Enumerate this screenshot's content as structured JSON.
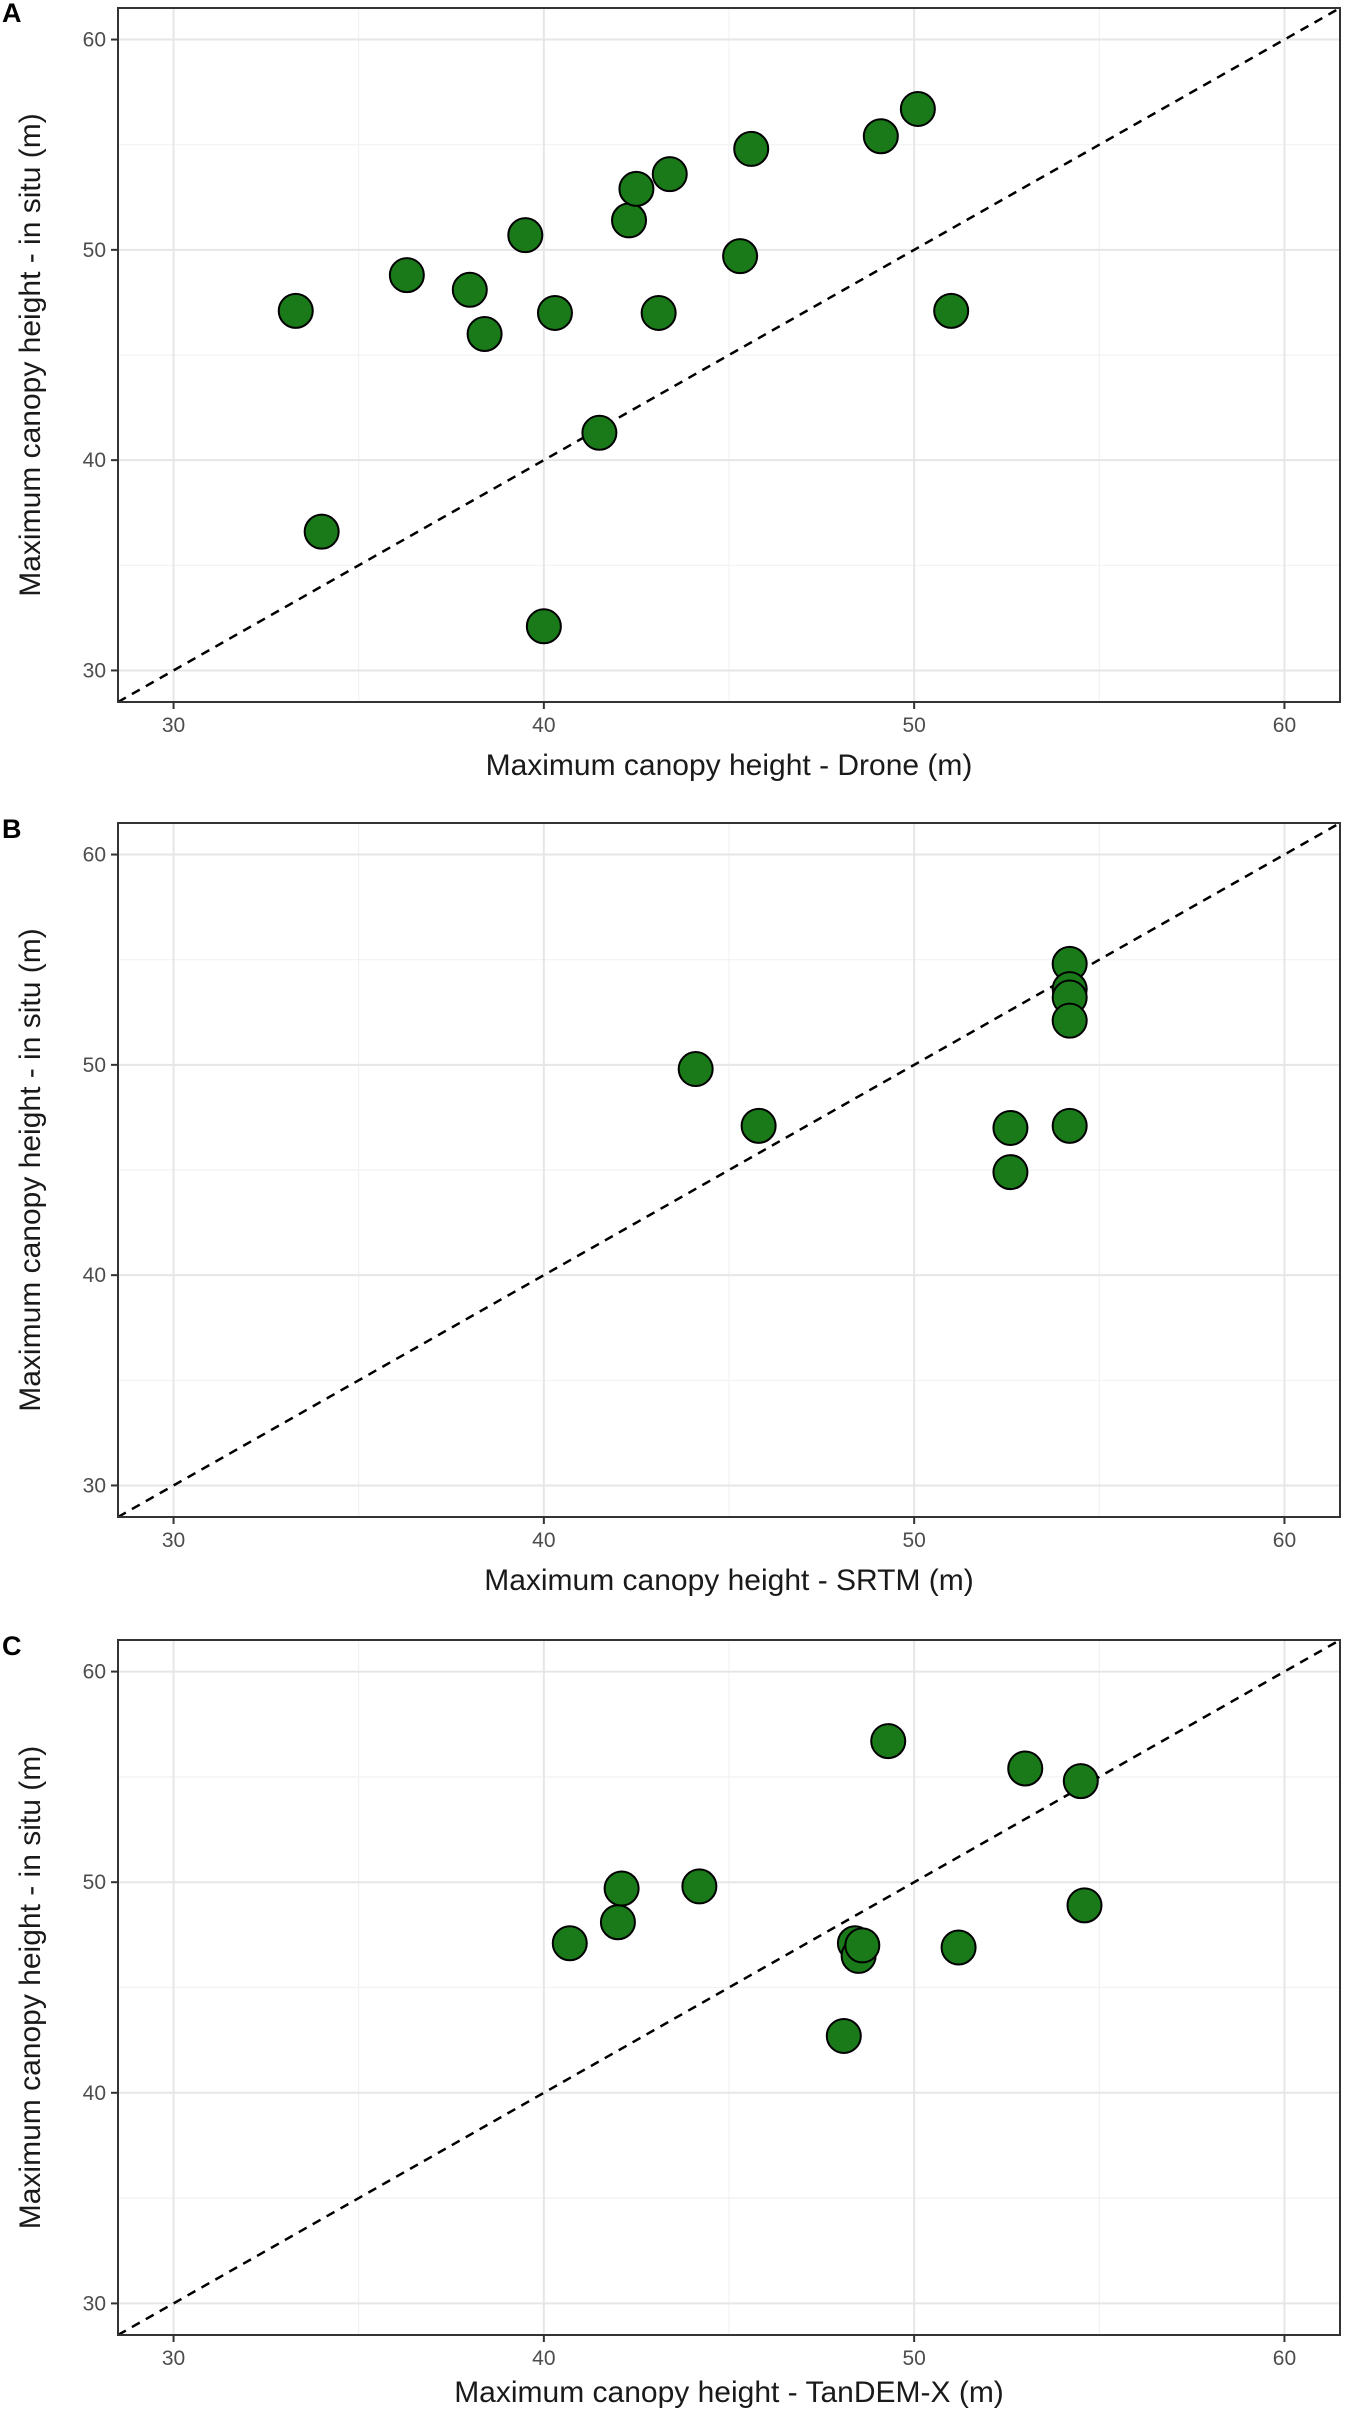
{
  "figure": {
    "description_colors": {
      "point_fill": "#1a7a1a",
      "point_stroke": "#000000",
      "grid": "#e6e6e6",
      "panel_border": "#333333"
    }
  },
  "chart_data": [
    {
      "type": "scatter",
      "panel_label": "A",
      "title": "",
      "xlabel": "Maximum canopy height - Drone (m)",
      "ylabel": "Maximum canopy height - in situ (m)",
      "xlim": [
        28.5,
        61.5
      ],
      "ylim": [
        28.5,
        61.5
      ],
      "xticks": [
        30,
        40,
        50,
        60
      ],
      "yticks": [
        30,
        40,
        50,
        60
      ],
      "reference_line": "1:1 dashed",
      "grid": true,
      "points": [
        [
          33.3,
          47.1
        ],
        [
          34.0,
          36.6
        ],
        [
          36.3,
          48.8
        ],
        [
          38.0,
          48.1
        ],
        [
          38.4,
          46.0
        ],
        [
          39.5,
          50.7
        ],
        [
          40.0,
          32.1
        ],
        [
          40.3,
          47.0
        ],
        [
          41.5,
          41.3
        ],
        [
          42.3,
          51.4
        ],
        [
          42.5,
          52.9
        ],
        [
          43.1,
          47.0
        ],
        [
          43.4,
          53.6
        ],
        [
          45.3,
          49.7
        ],
        [
          45.6,
          54.8
        ],
        [
          49.1,
          55.4
        ],
        [
          50.1,
          56.7
        ],
        [
          51.0,
          47.1
        ]
      ]
    },
    {
      "type": "scatter",
      "panel_label": "B",
      "title": "",
      "xlabel": "Maximum canopy height - SRTM (m)",
      "ylabel": "Maximum canopy height - in situ (m)",
      "xlim": [
        28.5,
        61.5
      ],
      "ylim": [
        28.5,
        61.5
      ],
      "xticks": [
        30,
        40,
        50,
        60
      ],
      "yticks": [
        30,
        40,
        50,
        60
      ],
      "reference_line": "1:1 dashed",
      "grid": true,
      "points": [
        [
          44.1,
          49.8
        ],
        [
          45.8,
          47.1
        ],
        [
          52.6,
          47.0
        ],
        [
          52.6,
          44.9
        ],
        [
          54.2,
          54.8
        ],
        [
          54.2,
          53.6
        ],
        [
          54.2,
          53.2
        ],
        [
          54.2,
          52.1
        ],
        [
          54.2,
          47.1
        ]
      ]
    },
    {
      "type": "scatter",
      "panel_label": "C",
      "title": "",
      "xlabel": "Maximum canopy height - TanDEM-X (m)",
      "ylabel": "Maximum canopy height - in situ (m)",
      "xlim": [
        28.5,
        61.5
      ],
      "ylim": [
        28.5,
        61.5
      ],
      "xticks": [
        30,
        40,
        50,
        60
      ],
      "yticks": [
        30,
        40,
        50,
        60
      ],
      "reference_line": "1:1 dashed",
      "grid": true,
      "points": [
        [
          40.7,
          47.1
        ],
        [
          42.0,
          48.1
        ],
        [
          42.1,
          49.7
        ],
        [
          44.2,
          49.8
        ],
        [
          48.1,
          42.7
        ],
        [
          48.4,
          47.1
        ],
        [
          48.5,
          46.5
        ],
        [
          48.6,
          47.0
        ],
        [
          49.3,
          56.7
        ],
        [
          51.2,
          46.9
        ],
        [
          53.0,
          55.4
        ],
        [
          54.5,
          54.8
        ],
        [
          54.6,
          48.9
        ]
      ]
    }
  ]
}
